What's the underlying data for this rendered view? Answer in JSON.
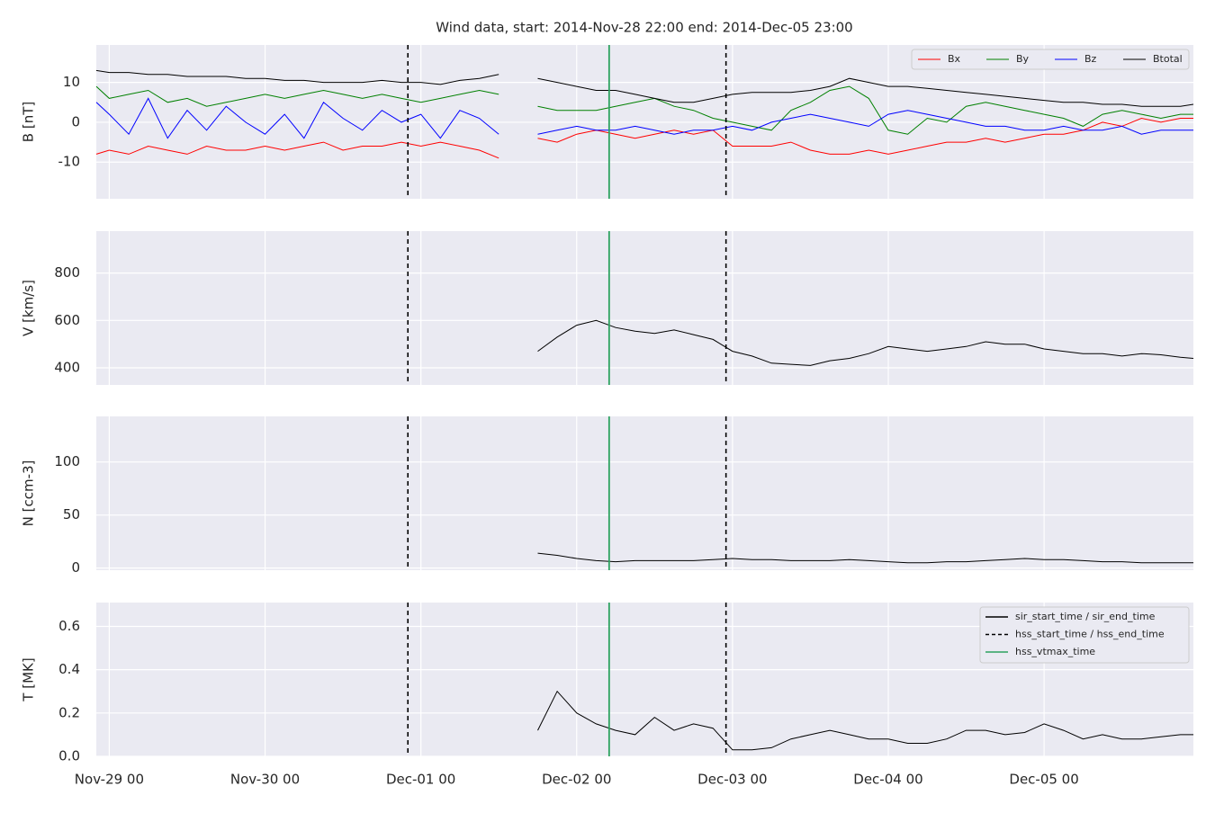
{
  "title": "Wind data, start: 2014-Nov-28 22:00  end: 2014-Dec-05 23:00",
  "x": [
    "Nov-28 22",
    "Nov-29 00",
    "Nov-29 03",
    "Nov-29 06",
    "Nov-29 09",
    "Nov-29 12",
    "Nov-29 15",
    "Nov-29 18",
    "Nov-29 21",
    "Nov-30 00",
    "Nov-30 03",
    "Nov-30 06",
    "Nov-30 09",
    "Nov-30 12",
    "Nov-30 15",
    "Nov-30 18",
    "Nov-30 21",
    "Dec-01 00",
    "Dec-01 03",
    "Dec-01 06",
    "Dec-01 09",
    "Dec-01 12",
    "Dec-01 15",
    "Dec-01 18",
    "Dec-01 21",
    "Dec-02 00",
    "Dec-02 03",
    "Dec-02 06",
    "Dec-02 09",
    "Dec-02 12",
    "Dec-02 15",
    "Dec-02 18",
    "Dec-02 21",
    "Dec-03 00",
    "Dec-03 03",
    "Dec-03 06",
    "Dec-03 09",
    "Dec-03 12",
    "Dec-03 15",
    "Dec-03 18",
    "Dec-03 21",
    "Dec-04 00",
    "Dec-04 03",
    "Dec-04 06",
    "Dec-04 09",
    "Dec-04 12",
    "Dec-04 15",
    "Dec-04 18",
    "Dec-04 21",
    "Dec-05 00",
    "Dec-05 03",
    "Dec-05 06",
    "Dec-05 09",
    "Dec-05 12",
    "Dec-05 15",
    "Dec-05 18",
    "Dec-05 21",
    "Dec-05 23"
  ],
  "xlim": [
    "Nov-28 22",
    "Dec-05 23"
  ],
  "xticks": [
    "Nov-29 00",
    "Nov-30 00",
    "Dec-01 00",
    "Dec-02 00",
    "Dec-03 00",
    "Dec-04 00",
    "Dec-05 00"
  ],
  "events": [
    {
      "name": "sir_start_time / sir_end_time",
      "color": "#000000",
      "style": "solid",
      "x": []
    },
    {
      "name": "hss_start_time / hss_end_time",
      "color": "#000000",
      "style": "dashed",
      "x": [
        "Nov-30 22",
        "Dec-02 23"
      ]
    },
    {
      "name": "hss_vtmax_time",
      "color": "#2ca25f",
      "style": "solid",
      "x": [
        "Dec-02 05"
      ]
    }
  ],
  "chart_data": [
    {
      "type": "line",
      "ylabel": "B [nT]",
      "ylim": [
        -19.2,
        19.4
      ],
      "yticks": [
        -10,
        0,
        10
      ],
      "grid": true,
      "legend": "upper right",
      "series": [
        {
          "name": "Bx",
          "color": "#ff0000",
          "values": [
            -8,
            -7,
            -8,
            -6,
            -7,
            -8,
            -6,
            -7,
            -7,
            -6,
            -7,
            -6,
            -5,
            -7,
            -6,
            -6,
            -5,
            -6,
            -5,
            -6,
            -7,
            -9,
            null,
            -4,
            -5,
            -3,
            -2,
            -3,
            -4,
            -3,
            -2,
            -3,
            -2,
            -6,
            -6,
            -6,
            -5,
            -7,
            -8,
            -8,
            -7,
            -8,
            -7,
            -6,
            -5,
            -5,
            -4,
            -5,
            -4,
            -3,
            -3,
            -2,
            0,
            -1,
            1,
            0,
            1,
            1
          ]
        },
        {
          "name": "By",
          "color": "#008000",
          "values": [
            9,
            6,
            7,
            8,
            5,
            6,
            4,
            5,
            6,
            7,
            6,
            7,
            8,
            7,
            6,
            7,
            6,
            5,
            6,
            7,
            8,
            7,
            null,
            4,
            3,
            3,
            3,
            4,
            5,
            6,
            4,
            3,
            1,
            0,
            -1,
            -2,
            3,
            5,
            8,
            9,
            6,
            -2,
            -3,
            1,
            0,
            4,
            5,
            4,
            3,
            2,
            1,
            -1,
            2,
            3,
            2,
            1,
            2,
            2
          ]
        },
        {
          "name": "Bz",
          "color": "#0000ff",
          "values": [
            5,
            2,
            -3,
            6,
            -4,
            3,
            -2,
            4,
            0,
            -3,
            2,
            -4,
            5,
            1,
            -2,
            3,
            0,
            2,
            -4,
            3,
            1,
            -3,
            null,
            -3,
            -2,
            -1,
            -2,
            -2,
            -1,
            -2,
            -3,
            -2,
            -2,
            -1,
            -2,
            0,
            1,
            2,
            1,
            0,
            -1,
            2,
            3,
            2,
            1,
            0,
            -1,
            -1,
            -2,
            -2,
            -1,
            -2,
            -2,
            -1,
            -3,
            -2,
            -2,
            -2
          ]
        },
        {
          "name": "Btotal",
          "color": "#000000",
          "values": [
            13,
            12.5,
            12.5,
            12,
            12,
            11.5,
            11.5,
            11.5,
            11,
            11,
            10.5,
            10.5,
            10,
            10,
            10,
            10.5,
            10,
            10,
            9.5,
            10.5,
            11,
            12,
            null,
            11,
            10,
            9,
            8,
            8,
            7,
            6,
            5,
            5,
            6,
            7,
            7.5,
            7.5,
            7.5,
            8,
            9,
            11,
            10,
            9,
            9,
            8.5,
            8,
            7.5,
            7,
            6.5,
            6,
            5.5,
            5,
            5,
            4.5,
            4.5,
            4,
            4,
            4,
            4.5
          ]
        }
      ]
    },
    {
      "type": "line",
      "ylabel": "V [km/s]",
      "ylim": [
        328,
        977
      ],
      "yticks": [
        400,
        600,
        800
      ],
      "grid": true,
      "series": [
        {
          "color": "#000000",
          "values": [
            null,
            null,
            null,
            null,
            null,
            null,
            null,
            null,
            null,
            null,
            null,
            null,
            null,
            null,
            null,
            null,
            null,
            null,
            null,
            null,
            null,
            null,
            null,
            470,
            530,
            580,
            600,
            570,
            555,
            545,
            560,
            540,
            520,
            470,
            450,
            420,
            415,
            410,
            430,
            440,
            460,
            490,
            480,
            470,
            480,
            490,
            510,
            500,
            500,
            480,
            470,
            460,
            460,
            450,
            460,
            455,
            445,
            440
          ]
        }
      ]
    },
    {
      "type": "line",
      "ylabel": "N [ccm-3]",
      "ylim": [
        -2,
        143
      ],
      "yticks": [
        0,
        50,
        100
      ],
      "grid": true,
      "series": [
        {
          "color": "#000000",
          "values": [
            null,
            null,
            null,
            null,
            null,
            null,
            null,
            null,
            null,
            null,
            null,
            null,
            null,
            null,
            null,
            null,
            null,
            null,
            null,
            null,
            null,
            null,
            null,
            14,
            12,
            9,
            7,
            6,
            7,
            7,
            7,
            7,
            8,
            9,
            8,
            8,
            7,
            7,
            7,
            8,
            7,
            6,
            5,
            5,
            6,
            6,
            7,
            8,
            9,
            8,
            8,
            7,
            6,
            6,
            5,
            5,
            5,
            5
          ]
        }
      ]
    },
    {
      "type": "line",
      "ylabel": "T [MK]",
      "ylim": [
        0,
        0.71
      ],
      "yticks": [
        {
          "value": 0,
          "label": "0.0"
        },
        0.2,
        0.4,
        0.6
      ],
      "grid": true,
      "legend": "upper right",
      "series": [
        {
          "color": "#000000",
          "values": [
            null,
            null,
            null,
            null,
            null,
            null,
            null,
            null,
            null,
            null,
            null,
            null,
            null,
            null,
            null,
            null,
            null,
            null,
            null,
            null,
            null,
            null,
            null,
            0.12,
            0.3,
            0.2,
            0.15,
            0.12,
            0.1,
            0.18,
            0.12,
            0.15,
            0.13,
            0.03,
            0.03,
            0.04,
            0.08,
            0.1,
            0.12,
            0.1,
            0.08,
            0.08,
            0.06,
            0.06,
            0.08,
            0.12,
            0.12,
            0.1,
            0.11,
            0.15,
            0.12,
            0.08,
            0.1,
            0.08,
            0.08,
            0.09,
            0.1,
            0.1
          ]
        }
      ]
    }
  ]
}
